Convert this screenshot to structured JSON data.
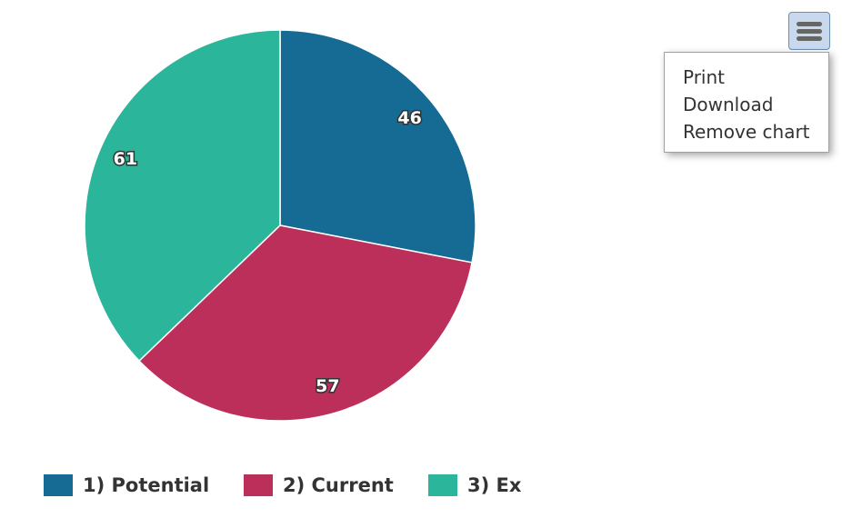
{
  "chart_data": {
    "type": "pie",
    "categories": [
      "1) Potential",
      "2) Current",
      "3) Ex"
    ],
    "values": [
      46,
      57,
      61
    ],
    "colors": [
      "#156b93",
      "#bb2f5a",
      "#2bb59b"
    ],
    "legend": "bottom"
  },
  "menu": {
    "items": [
      "Print",
      "Download",
      "Remove chart"
    ]
  }
}
